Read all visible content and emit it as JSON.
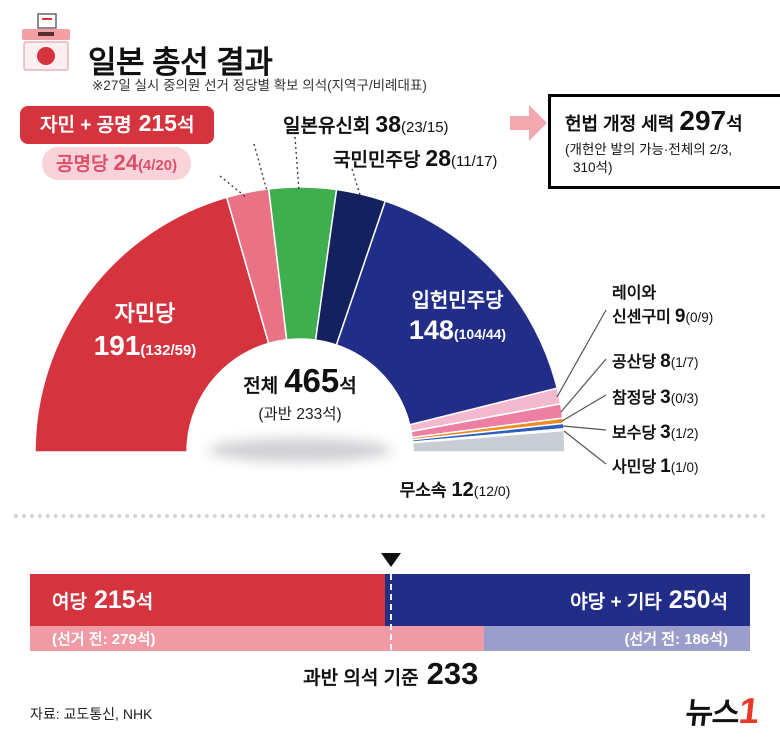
{
  "header": {
    "title": "일본 총선 결과",
    "subtitle": "※27일 실시 중의원 선거 정당별 확보 의석(지역구/비례대표)"
  },
  "callouts": {
    "coalition": {
      "label": "자민 + 공명",
      "value": "215",
      "suffix": "석"
    },
    "constitution": {
      "label": "헌법 개정 세력",
      "value": "297",
      "suffix": "석",
      "note1": "(개헌안 발의 가능·전체의 2/3,",
      "note2": "310석)"
    }
  },
  "chart_data": [
    {
      "type": "pie",
      "variant": "half-donut",
      "title": "일본 총선 결과",
      "unit": "석",
      "total": 465,
      "center": {
        "label": "전체",
        "value": "465",
        "suffix": "석",
        "sub": "(과반 233석)"
      },
      "series": [
        {
          "name": "자민당",
          "seats": 191,
          "detail": "(132/59)",
          "color": "#d5333e"
        },
        {
          "name": "공명당",
          "seats": 24,
          "detail": "(4/20)",
          "color": "#ea7285"
        },
        {
          "name": "일본유신회",
          "seats": 38,
          "detail": "(23/15)",
          "color": "#3fae4f"
        },
        {
          "name": "국민민주당",
          "seats": 28,
          "detail": "(11/17)",
          "color": "#15205f"
        },
        {
          "name": "입헌민주당",
          "seats": 148,
          "detail": "(104/44)",
          "color": "#222d87"
        },
        {
          "name": "레이와 신센구미",
          "name_line1": "레이와",
          "name_line2": "신센구미",
          "seats": 9,
          "detail": "(0/9)",
          "color": "#f3b9ce"
        },
        {
          "name": "공산당",
          "seats": 8,
          "detail": "(1/7)",
          "color": "#ec7fa2"
        },
        {
          "name": "참정당",
          "seats": 3,
          "detail": "(0/3)",
          "color": "#ee8b23"
        },
        {
          "name": "보수당",
          "seats": 3,
          "detail": "(1/2)",
          "color": "#2e5fc0"
        },
        {
          "name": "사민당",
          "seats": 1,
          "detail": "(1/0)",
          "color": "#93c6ec"
        },
        {
          "name": "무소속",
          "seats": 12,
          "detail": "(12/0)",
          "color": "#c9ced5"
        }
      ]
    },
    {
      "type": "bar",
      "variant": "stacked-horizontal",
      "total": 465,
      "majority": 233,
      "majority_label": "과반 의석 기준",
      "top": [
        {
          "label": "여당",
          "seats": 215,
          "suffix": "석",
          "color": "#d5333e"
        },
        {
          "label": "야당 + 기타",
          "seats": 250,
          "suffix": "석",
          "color": "#222d87"
        }
      ],
      "bottom": [
        {
          "label": "(선거 전: 279석)",
          "seats": 279,
          "color": "#ef9aa4"
        },
        {
          "label": "(선거 전: 186석)",
          "seats": 186,
          "color": "#9b9dca"
        }
      ]
    }
  ],
  "footer": {
    "source": "자료: 교도통신, NHK",
    "logo_black": "뉴스",
    "logo_red": "1"
  }
}
